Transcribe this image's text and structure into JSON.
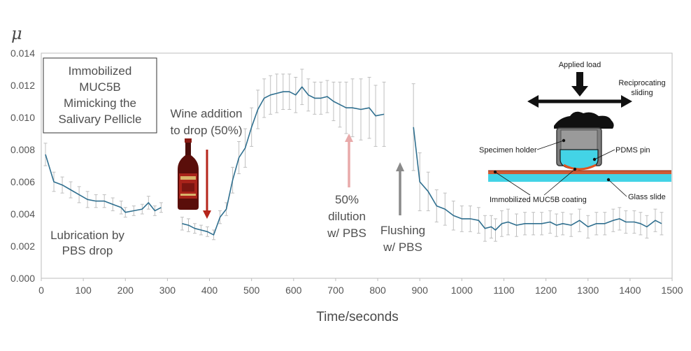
{
  "chart_data": {
    "type": "line",
    "ylabel": "μ",
    "xlabel": "Time/seconds",
    "xlim": [
      0,
      1500
    ],
    "ylim": [
      0,
      0.014
    ],
    "xticks": [
      "0",
      "100",
      "200",
      "300",
      "400",
      "500",
      "600",
      "700",
      "800",
      "900",
      "1000",
      "1100",
      "1200",
      "1300",
      "1400",
      "1500"
    ],
    "yticks": [
      "0.000",
      "0.002",
      "0.004",
      "0.006",
      "0.008",
      "0.010",
      "0.012",
      "0.014"
    ],
    "grid": false,
    "series": [
      {
        "segment": "pbs-drop",
        "color": "#2f6f8f",
        "points": [
          [
            10,
            0.0077
          ],
          [
            30,
            0.006
          ],
          [
            50,
            0.0058
          ],
          [
            70,
            0.0055
          ],
          [
            90,
            0.0052
          ],
          [
            110,
            0.0049
          ],
          [
            130,
            0.0048
          ],
          [
            150,
            0.0048
          ],
          [
            170,
            0.0046
          ],
          [
            190,
            0.0044
          ],
          [
            200,
            0.0041
          ],
          [
            220,
            0.0042
          ],
          [
            240,
            0.0043
          ],
          [
            255,
            0.0047
          ],
          [
            270,
            0.0042
          ],
          [
            285,
            0.0044
          ]
        ],
        "errors": [
          0.0007,
          0.0006,
          0.0005,
          0.0005,
          0.0005,
          0.0005,
          0.0004,
          0.0004,
          0.0004,
          0.0004,
          0.0003,
          0.0003,
          0.0003,
          0.0004,
          0.0003,
          0.0003
        ]
      },
      {
        "segment": "wine",
        "color": "#2f6f8f",
        "points": [
          [
            335,
            0.0034
          ],
          [
            350,
            0.0033
          ],
          [
            365,
            0.0031
          ],
          [
            380,
            0.003
          ],
          [
            395,
            0.0029
          ],
          [
            410,
            0.0027
          ],
          [
            425,
            0.0038
          ],
          [
            440,
            0.0043
          ],
          [
            455,
            0.0061
          ],
          [
            470,
            0.0075
          ],
          [
            485,
            0.0081
          ],
          [
            500,
            0.0094
          ],
          [
            515,
            0.0105
          ],
          [
            530,
            0.0112
          ],
          [
            545,
            0.0114
          ],
          [
            560,
            0.0115
          ],
          [
            575,
            0.0116
          ],
          [
            590,
            0.0116
          ],
          [
            605,
            0.0114
          ],
          [
            620,
            0.0119
          ],
          [
            635,
            0.0114
          ],
          [
            650,
            0.0112
          ],
          [
            665,
            0.0112
          ],
          [
            680,
            0.0113
          ],
          [
            695,
            0.011
          ],
          [
            710,
            0.0108
          ],
          [
            725,
            0.0106
          ],
          [
            740,
            0.0106
          ],
          [
            760,
            0.0105
          ],
          [
            780,
            0.0106
          ],
          [
            795,
            0.0101
          ],
          [
            815,
            0.0102
          ]
        ],
        "errors": [
          0.0004,
          0.0004,
          0.0003,
          0.0003,
          0.0003,
          0.0003,
          0.0004,
          0.0004,
          0.0008,
          0.001,
          0.0012,
          0.0012,
          0.0012,
          0.0012,
          0.0012,
          0.0012,
          0.0011,
          0.0011,
          0.0011,
          0.0011,
          0.001,
          0.001,
          0.001,
          0.001,
          0.0012,
          0.0014,
          0.0016,
          0.0018,
          0.0019,
          0.0019,
          0.0019,
          0.002
        ]
      },
      {
        "segment": "flushing",
        "color": "#2f6f8f",
        "points": [
          [
            885,
            0.0094
          ],
          [
            900,
            0.006
          ],
          [
            920,
            0.0054
          ],
          [
            940,
            0.0045
          ],
          [
            960,
            0.0043
          ],
          [
            980,
            0.0039
          ],
          [
            1000,
            0.0037
          ],
          [
            1020,
            0.0037
          ],
          [
            1040,
            0.0036
          ],
          [
            1055,
            0.0031
          ],
          [
            1070,
            0.0032
          ],
          [
            1080,
            0.003
          ],
          [
            1095,
            0.0034
          ],
          [
            1110,
            0.0035
          ],
          [
            1130,
            0.0033
          ],
          [
            1150,
            0.0034
          ],
          [
            1170,
            0.0034
          ],
          [
            1190,
            0.0034
          ],
          [
            1210,
            0.0035
          ],
          [
            1225,
            0.0033
          ],
          [
            1240,
            0.0034
          ],
          [
            1260,
            0.0033
          ],
          [
            1280,
            0.0036
          ],
          [
            1300,
            0.0032
          ],
          [
            1320,
            0.0034
          ],
          [
            1340,
            0.0034
          ],
          [
            1360,
            0.0036
          ],
          [
            1375,
            0.0037
          ],
          [
            1390,
            0.0035
          ],
          [
            1410,
            0.0035
          ],
          [
            1425,
            0.0034
          ],
          [
            1440,
            0.0032
          ],
          [
            1460,
            0.0036
          ],
          [
            1475,
            0.0034
          ]
        ],
        "errors": [
          0.0027,
          0.0018,
          0.0012,
          0.001,
          0.001,
          0.0009,
          0.0008,
          0.0008,
          0.0008,
          0.0008,
          0.0007,
          0.0007,
          0.0008,
          0.0008,
          0.0007,
          0.0007,
          0.0007,
          0.0007,
          0.0007,
          0.0007,
          0.0007,
          0.0007,
          0.0007,
          0.0007,
          0.0007,
          0.0007,
          0.0007,
          0.0007,
          0.0007,
          0.0007,
          0.0007,
          0.0007,
          0.0007,
          0.0007
        ]
      }
    ],
    "annotations": {
      "box_text": [
        "Immobilized",
        "MUC5B",
        "Mimicking the",
        "Salivary Pellicle"
      ],
      "lubrication": [
        "Lubrication by",
        "PBS drop"
      ],
      "wine": [
        "Wine addition",
        "to drop (50%)"
      ],
      "dilution": [
        "50%",
        "dilution",
        "w/ PBS"
      ],
      "flushing": [
        "Flushing",
        "w/ PBS"
      ],
      "colors": {
        "wine_arrow": "#b5251b",
        "dilution_arrow": "#e8aaaa",
        "flushing_arrow": "#8a8a8a",
        "line": "#2f6f8f",
        "error": "#bfbfbf"
      }
    },
    "inset": {
      "applied_load": "Applied load",
      "reciprocating": [
        "Reciprocating",
        "sliding"
      ],
      "specimen_holder": "Specimen holder",
      "pdms_pin": "PDMS pin",
      "coating": "Immobilized MUC5B coating",
      "glass_slide": "Glass slide"
    }
  }
}
